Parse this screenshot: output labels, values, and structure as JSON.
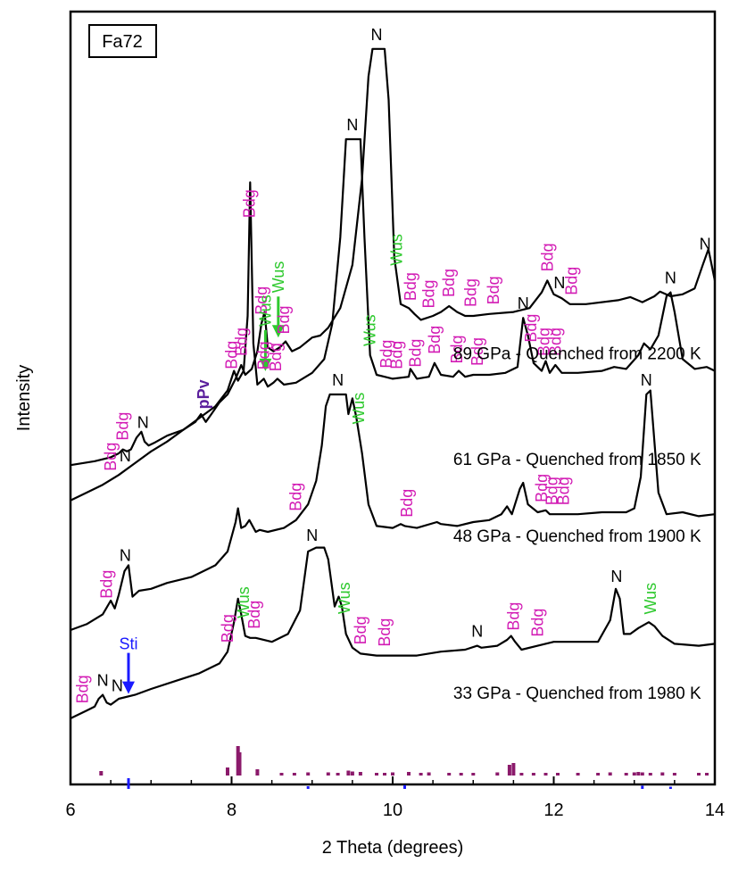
{
  "chart_data": {
    "type": "line",
    "sample_label": "Fa72",
    "xlabel": "2 Theta (degrees)",
    "ylabel": "Intensity",
    "xlim": [
      6,
      14
    ],
    "xticks": [
      6,
      8,
      10,
      12,
      14
    ],
    "grid": false,
    "legend": "none",
    "colors": {
      "curve": "#000000",
      "Bdg": "#d21bb4",
      "Wus": "#2ec92e",
      "N": "#000000",
      "pPv": "#5b1f9c",
      "Sti": "#1a1aff",
      "bdg_reference": "#8b1a6b",
      "sti_reference": "#1a1aff"
    },
    "series": [
      {
        "name": "89 GPa - Quenched from 2200 K",
        "x": [
          6.0,
          6.3,
          6.5,
          6.6,
          6.65,
          6.7,
          6.75,
          6.82,
          6.88,
          6.92,
          6.97,
          7.05,
          7.2,
          7.4,
          7.55,
          7.62,
          7.68,
          7.75,
          7.85,
          7.95,
          8.05,
          8.12,
          8.17,
          8.25,
          8.32,
          8.37,
          8.41,
          8.45,
          8.52,
          8.6,
          8.67,
          8.75,
          8.85,
          9.0,
          9.1,
          9.2,
          9.35,
          9.5,
          9.62,
          9.7,
          9.75,
          9.8,
          9.9,
          9.95,
          10.02,
          10.1,
          10.2,
          10.27,
          10.35,
          10.5,
          10.6,
          10.7,
          10.8,
          10.9,
          11.0,
          11.2,
          11.5,
          11.7,
          11.85,
          11.92,
          12.0,
          12.1,
          12.2,
          12.4,
          12.8,
          12.95,
          13.1,
          13.25,
          13.32,
          13.45,
          13.6,
          13.75,
          13.85,
          13.92,
          14.0
        ],
        "y": [
          0.2,
          0.3,
          0.4,
          0.5,
          0.6,
          0.55,
          0.6,
          0.9,
          1.05,
          0.8,
          0.7,
          0.78,
          0.95,
          1.1,
          1.3,
          1.5,
          1.3,
          1.5,
          1.8,
          2.0,
          2.4,
          2.75,
          2.5,
          2.65,
          3.1,
          3.8,
          4.1,
          3.2,
          3.1,
          3.2,
          3.35,
          3.1,
          3.2,
          3.45,
          3.5,
          3.7,
          4.2,
          5.3,
          7.5,
          10.1,
          10.8,
          10.8,
          10.8,
          9.5,
          5.5,
          4.3,
          4.2,
          4.05,
          3.9,
          4.0,
          4.1,
          4.25,
          4.1,
          4.0,
          4.0,
          4.05,
          4.1,
          4.2,
          4.6,
          4.9,
          4.55,
          4.45,
          4.3,
          4.3,
          4.4,
          4.48,
          4.35,
          4.5,
          4.62,
          4.5,
          4.55,
          4.7,
          5.3,
          5.7,
          4.9
        ],
        "y_offset": 7.5
      },
      {
        "name": "61 GPa - Quenched from 1850 K",
        "x": [
          6.0,
          6.2,
          6.4,
          6.6,
          6.8,
          7.0,
          7.2,
          7.4,
          7.6,
          7.8,
          7.95,
          8.03,
          8.08,
          8.15,
          8.2,
          8.23,
          8.27,
          8.32,
          8.4,
          8.45,
          8.52,
          8.57,
          8.65,
          8.8,
          9.0,
          9.15,
          9.25,
          9.35,
          9.42,
          9.48,
          9.6,
          9.65,
          9.72,
          9.8,
          9.9,
          10.0,
          10.2,
          10.22,
          10.3,
          10.45,
          10.52,
          10.6,
          10.75,
          10.82,
          10.9,
          11.0,
          11.2,
          11.4,
          11.55,
          11.62,
          11.68,
          11.75,
          11.85,
          11.9,
          11.95,
          12.02,
          12.1,
          12.3,
          12.6,
          12.75,
          12.9,
          13.05,
          13.12,
          13.2,
          13.3,
          13.4,
          13.45,
          13.5,
          13.6,
          13.75,
          13.9,
          14.0
        ],
        "y": [
          1.8,
          2.0,
          2.2,
          2.45,
          2.75,
          3.05,
          3.3,
          3.6,
          3.9,
          4.2,
          4.6,
          5.1,
          4.85,
          5.1,
          6.5,
          9.9,
          5.8,
          4.75,
          4.9,
          4.7,
          4.8,
          4.9,
          4.75,
          4.8,
          5.05,
          5.4,
          6.3,
          8.5,
          11.0,
          11.0,
          11.0,
          8.5,
          5.5,
          5.0,
          4.95,
          4.9,
          4.95,
          5.15,
          4.9,
          4.95,
          5.3,
          5.0,
          4.95,
          5.1,
          4.95,
          5.0,
          5.0,
          5.05,
          5.2,
          6.45,
          6.0,
          5.3,
          5.1,
          5.35,
          5.05,
          5.25,
          5.05,
          5.05,
          5.1,
          5.2,
          5.15,
          5.5,
          5.8,
          5.65,
          6.0,
          7.0,
          7.1,
          6.6,
          5.4,
          5.15,
          5.2,
          5.1
        ],
        "y_offset": 5.0
      },
      {
        "name": "48 GPa - Quenched from 1900 K",
        "x": [
          6.0,
          6.2,
          6.4,
          6.5,
          6.55,
          6.6,
          6.67,
          6.72,
          6.77,
          6.85,
          7.0,
          7.2,
          7.5,
          7.8,
          7.95,
          8.05,
          8.08,
          8.12,
          8.17,
          8.22,
          8.3,
          8.35,
          8.45,
          8.65,
          8.8,
          8.95,
          9.05,
          9.12,
          9.17,
          9.22,
          9.35,
          9.42,
          9.45,
          9.5,
          9.55,
          9.62,
          9.7,
          9.8,
          10.0,
          10.1,
          10.15,
          10.3,
          10.55,
          10.6,
          10.8,
          11.0,
          11.2,
          11.35,
          11.42,
          11.48,
          11.58,
          11.62,
          11.68,
          11.8,
          11.9,
          11.95,
          12.05,
          12.3,
          12.6,
          12.9,
          13.0,
          13.08,
          13.15,
          13.2,
          13.25,
          13.3,
          13.4,
          13.6,
          13.8,
          14.0
        ],
        "y": [
          0.5,
          0.65,
          0.9,
          1.25,
          1.05,
          1.4,
          2.0,
          2.15,
          1.35,
          1.5,
          1.55,
          1.7,
          1.85,
          2.15,
          2.5,
          3.25,
          3.6,
          3.1,
          3.15,
          3.3,
          3.0,
          3.05,
          3.0,
          3.1,
          3.3,
          3.7,
          4.3,
          5.2,
          6.2,
          6.5,
          6.5,
          6.5,
          6.0,
          6.4,
          5.9,
          5.0,
          3.7,
          3.15,
          3.1,
          3.2,
          3.15,
          3.1,
          3.25,
          3.2,
          3.15,
          3.25,
          3.3,
          3.45,
          3.65,
          3.45,
          4.1,
          4.25,
          3.7,
          3.5,
          3.55,
          3.45,
          3.45,
          3.45,
          3.5,
          3.5,
          3.6,
          4.4,
          6.5,
          6.6,
          5.3,
          4.0,
          3.45,
          3.5,
          3.4,
          3.45
        ],
        "y_offset": 3.0
      },
      {
        "name": "33 GPa - Quenched from 1980 K",
        "x": [
          6.0,
          6.2,
          6.3,
          6.35,
          6.4,
          6.45,
          6.5,
          6.6,
          6.8,
          7.0,
          7.3,
          7.6,
          7.85,
          7.95,
          8.03,
          8.08,
          8.12,
          8.17,
          8.23,
          8.3,
          8.5,
          8.7,
          8.85,
          8.95,
          9.05,
          9.15,
          9.2,
          9.28,
          9.33,
          9.37,
          9.42,
          9.5,
          9.6,
          9.8,
          10.0,
          10.3,
          10.6,
          10.9,
          11.05,
          11.1,
          11.3,
          11.42,
          11.47,
          11.52,
          11.6,
          11.8,
          12.0,
          12.3,
          12.55,
          12.7,
          12.77,
          12.82,
          12.87,
          12.95,
          13.05,
          13.18,
          13.25,
          13.35,
          13.5,
          13.8,
          14.0
        ],
        "y": [
          0.25,
          0.45,
          0.55,
          0.75,
          0.85,
          0.65,
          0.6,
          0.75,
          0.85,
          1.0,
          1.2,
          1.4,
          1.65,
          1.95,
          2.7,
          3.3,
          2.9,
          2.35,
          2.3,
          2.3,
          2.2,
          2.4,
          3.0,
          4.5,
          4.6,
          4.6,
          4.3,
          3.1,
          3.35,
          3.1,
          2.4,
          2.05,
          1.9,
          1.85,
          1.85,
          1.85,
          1.95,
          2.0,
          2.1,
          2.05,
          2.1,
          2.25,
          2.35,
          2.2,
          2.0,
          2.1,
          2.2,
          2.2,
          2.2,
          2.75,
          3.55,
          3.3,
          2.4,
          2.4,
          2.55,
          2.7,
          2.6,
          2.35,
          2.15,
          2.1,
          2.15
        ],
        "y_offset": 1.0
      }
    ],
    "reference_bars": {
      "bdg": {
        "x": [
          6.38,
          7.95,
          8.08,
          8.1,
          8.32,
          8.62,
          8.78,
          8.95,
          9.2,
          9.32,
          9.45,
          9.5,
          9.6,
          9.8,
          9.9,
          10.0,
          10.2,
          10.35,
          10.45,
          10.7,
          10.85,
          11.0,
          11.3,
          11.45,
          11.5,
          11.6,
          11.75,
          11.9,
          12.05,
          12.3,
          12.55,
          12.7,
          12.9,
          13.0,
          13.05,
          13.1,
          13.2,
          13.35,
          13.5,
          13.8,
          13.9
        ],
        "height": [
          0.5,
          0.9,
          3.3,
          2.6,
          0.7,
          0.3,
          0.3,
          0.35,
          0.35,
          0.3,
          0.55,
          0.45,
          0.4,
          0.3,
          0.3,
          0.35,
          0.4,
          0.3,
          0.35,
          0.3,
          0.3,
          0.3,
          0.35,
          1.2,
          1.4,
          0.3,
          0.3,
          0.3,
          0.3,
          0.3,
          0.3,
          0.35,
          0.3,
          0.35,
          0.4,
          0.35,
          0.3,
          0.35,
          0.3,
          0.3,
          0.3
        ]
      },
      "sti": {
        "x": [
          6.72,
          8.95,
          10.15,
          13.1,
          13.45
        ],
        "height": [
          1.0,
          0.25,
          0.35,
          0.3,
          0.2
        ]
      }
    },
    "annotations": [
      {
        "series": 0,
        "text": "Bdg",
        "x": 6.65,
        "kind": "Bdg"
      },
      {
        "series": 0,
        "text": "N",
        "x": 6.9,
        "kind": "N"
      },
      {
        "series": 0,
        "text": "pPv",
        "x": 7.65,
        "kind": "pPv"
      },
      {
        "series": 0,
        "text": "Bdg",
        "x": 8.12,
        "kind": "Bdg"
      },
      {
        "series": 0,
        "text": "Bdg",
        "x": 8.37,
        "kind": "Bdg"
      },
      {
        "series": 0,
        "text": "Wus",
        "x": 8.58,
        "kind": "Wus",
        "arrow": true
      },
      {
        "series": 0,
        "text": "Bdg",
        "x": 8.65,
        "kind": "Bdg"
      },
      {
        "series": 0,
        "text": "N",
        "x": 9.8,
        "kind": "N"
      },
      {
        "series": 0,
        "text": "Wus",
        "x": 10.05,
        "kind": "Wus"
      },
      {
        "series": 0,
        "text": "Bdg",
        "x": 10.22,
        "kind": "Bdg"
      },
      {
        "series": 0,
        "text": "Bdg",
        "x": 10.45,
        "kind": "Bdg"
      },
      {
        "series": 0,
        "text": "Bdg",
        "x": 10.7,
        "kind": "Bdg"
      },
      {
        "series": 0,
        "text": "Bdg",
        "x": 10.97,
        "kind": "Bdg"
      },
      {
        "series": 0,
        "text": "Bdg",
        "x": 11.25,
        "kind": "Bdg"
      },
      {
        "series": 0,
        "text": "Bdg",
        "x": 11.92,
        "kind": "Bdg"
      },
      {
        "series": 0,
        "text": "N",
        "x": 12.07,
        "kind": "N"
      },
      {
        "series": 0,
        "text": "Bdg",
        "x": 12.22,
        "kind": "Bdg"
      },
      {
        "series": 0,
        "text": "N",
        "x": 13.88,
        "kind": "N"
      },
      {
        "series": 1,
        "text": "Bdg",
        "x": 6.5,
        "kind": "Bdg"
      },
      {
        "series": 1,
        "text": "N",
        "x": 6.68,
        "kind": "N"
      },
      {
        "series": 1,
        "text": "Bdg",
        "x": 8.0,
        "kind": "Bdg"
      },
      {
        "series": 1,
        "text": "Bdg",
        "x": 8.22,
        "kind": "Bdg"
      },
      {
        "series": 1,
        "text": "Wus",
        "x": 8.42,
        "kind": "Wus",
        "arrow": true
      },
      {
        "series": 1,
        "text": "Bdg",
        "x": 8.4,
        "kind": "Bdg"
      },
      {
        "series": 1,
        "text": "Bdg",
        "x": 8.55,
        "kind": "Bdg"
      },
      {
        "series": 1,
        "text": "N",
        "x": 9.5,
        "kind": "N"
      },
      {
        "series": 1,
        "text": "Wus",
        "x": 9.72,
        "kind": "Wus"
      },
      {
        "series": 1,
        "text": "Bdg",
        "x": 9.92,
        "kind": "Bdg"
      },
      {
        "series": 1,
        "text": "Bdg",
        "x": 10.05,
        "kind": "Bdg"
      },
      {
        "series": 1,
        "text": "Bdg",
        "x": 10.28,
        "kind": "Bdg"
      },
      {
        "series": 1,
        "text": "Bdg",
        "x": 10.52,
        "kind": "Bdg"
      },
      {
        "series": 1,
        "text": "Bdg",
        "x": 10.8,
        "kind": "Bdg"
      },
      {
        "series": 1,
        "text": "Bdg",
        "x": 11.05,
        "kind": "Bdg"
      },
      {
        "series": 1,
        "text": "N",
        "x": 11.62,
        "kind": "N"
      },
      {
        "series": 1,
        "text": "Bdg",
        "x": 11.72,
        "kind": "Bdg"
      },
      {
        "series": 1,
        "text": "Bdg",
        "x": 11.88,
        "kind": "Bdg"
      },
      {
        "series": 1,
        "text": "Bdg",
        "x": 12.02,
        "kind": "Bdg"
      },
      {
        "series": 1,
        "text": "N",
        "x": 13.45,
        "kind": "N"
      },
      {
        "series": 2,
        "text": "Bdg",
        "x": 6.45,
        "kind": "Bdg"
      },
      {
        "series": 2,
        "text": "N",
        "x": 6.68,
        "kind": "N"
      },
      {
        "series": 2,
        "text": "Bdg",
        "x": 8.8,
        "kind": "Bdg"
      },
      {
        "series": 2,
        "text": "N",
        "x": 9.32,
        "kind": "N"
      },
      {
        "series": 2,
        "text": "Wus",
        "x": 9.58,
        "kind": "Wus"
      },
      {
        "series": 2,
        "text": "Bdg",
        "x": 10.18,
        "kind": "Bdg"
      },
      {
        "series": 2,
        "text": "Bdg",
        "x": 11.85,
        "kind": "Bdg"
      },
      {
        "series": 2,
        "text": "Bdg",
        "x": 11.98,
        "kind": "Bdg"
      },
      {
        "series": 2,
        "text": "Bdg",
        "x": 12.12,
        "kind": "Bdg"
      },
      {
        "series": 2,
        "text": "N",
        "x": 13.15,
        "kind": "N"
      },
      {
        "series": 3,
        "text": "Bdg",
        "x": 6.15,
        "kind": "Bdg"
      },
      {
        "series": 3,
        "text": "N",
        "x": 6.58,
        "kind": "N"
      },
      {
        "series": 3,
        "text": "Bdg",
        "x": 7.95,
        "kind": "Bdg"
      },
      {
        "series": 3,
        "text": "Wus",
        "x": 8.15,
        "kind": "Wus"
      },
      {
        "series": 3,
        "text": "Bdg",
        "x": 8.28,
        "kind": "Bdg"
      },
      {
        "series": 3,
        "text": "N",
        "x": 9.0,
        "kind": "N"
      },
      {
        "series": 3,
        "text": "Wus",
        "x": 9.4,
        "kind": "Wus"
      },
      {
        "series": 3,
        "text": "Bdg",
        "x": 9.6,
        "kind": "Bdg"
      },
      {
        "series": 3,
        "text": "Bdg",
        "x": 9.9,
        "kind": "Bdg"
      },
      {
        "series": 3,
        "text": "N",
        "x": 11.05,
        "kind": "N"
      },
      {
        "series": 3,
        "text": "Bdg",
        "x": 11.5,
        "kind": "Bdg"
      },
      {
        "series": 3,
        "text": "Bdg",
        "x": 11.8,
        "kind": "Bdg"
      },
      {
        "series": 3,
        "text": "N",
        "x": 12.78,
        "kind": "N"
      },
      {
        "series": 3,
        "text": "Wus",
        "x": 13.2,
        "kind": "Wus"
      },
      {
        "series": 3,
        "text": "N",
        "x": 6.4,
        "kind": "N"
      },
      {
        "series": 3,
        "text": "Sti",
        "x": 6.72,
        "kind": "Sti",
        "arrow": true
      }
    ]
  }
}
